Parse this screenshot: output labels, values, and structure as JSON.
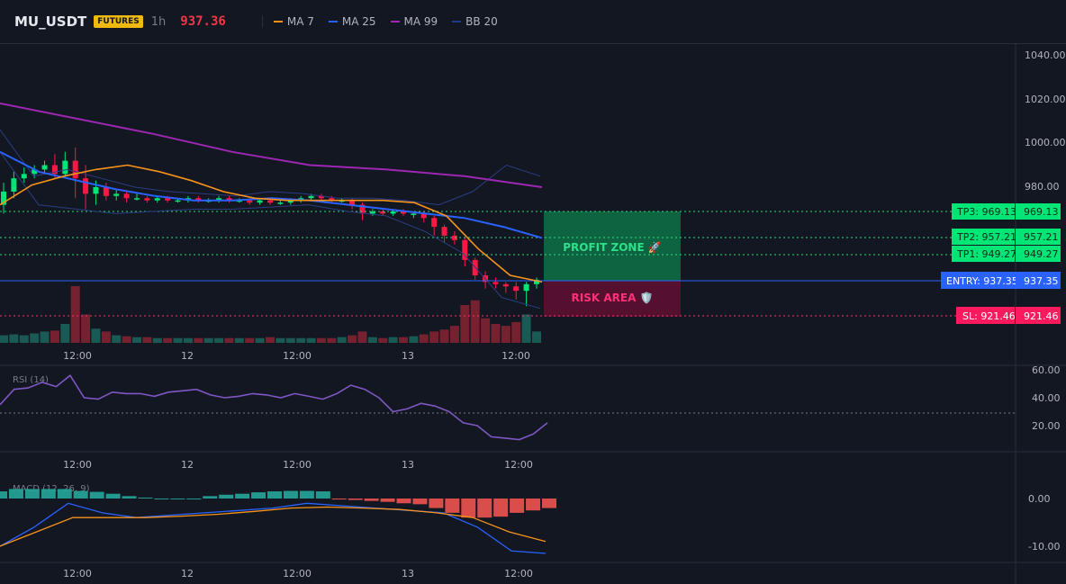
{
  "header": {
    "symbol": "MU_USDT",
    "badge": "FUTURES",
    "timeframe": "1h",
    "price": "937.36",
    "legend": [
      {
        "label": "MA 7",
        "color": "#f7931a"
      },
      {
        "label": "MA 25",
        "color": "#2962ff"
      },
      {
        "label": "MA 99",
        "color": "#9c27b0"
      },
      {
        "label": "BB 20",
        "color": "#1e3a8a"
      }
    ]
  },
  "colors": {
    "up": "#00e676",
    "down": "#ff1744",
    "background": "#131722",
    "profit_zone": "#0f7a4e",
    "risk_area": "#6b1232",
    "entry": "#2962ff"
  },
  "price_axis": {
    "ticks": [
      "1040.00",
      "1020.00",
      "1000.00",
      "980.00"
    ]
  },
  "time_axis": {
    "ticks": [
      "12:00",
      "12",
      "12:00",
      "13",
      "12:00"
    ]
  },
  "levels": {
    "tp3": {
      "label": "TP3: 969.13",
      "value": "969.13",
      "price": 969.13
    },
    "tp2": {
      "label": "TP2: 957.21",
      "value": "957.21",
      "price": 957.21
    },
    "tp1": {
      "label": "TP1: 949.27",
      "value": "949.27",
      "price": 949.27
    },
    "entry": {
      "label": "ENTRY: 937.35",
      "value": "937.35",
      "price": 937.35
    },
    "sl": {
      "label": "SL: 921.46",
      "value": "921.46",
      "price": 921.46
    }
  },
  "zones": {
    "profit": "PROFIT ZONE 🚀",
    "risk": "RISK AREA 🛡️"
  },
  "rsi": {
    "label": "RSI (14)",
    "ticks": [
      "60.00",
      "40.00",
      "20.00"
    ],
    "overbought_line": 30
  },
  "macd": {
    "label": "MACD (12, 26, 9)",
    "ticks": [
      "0.00",
      "-10.00"
    ]
  },
  "chart_data": {
    "type": "candlestick",
    "ma7": [
      972,
      981,
      985,
      988,
      990,
      987,
      983,
      978,
      975,
      974,
      974,
      974,
      974,
      973,
      967,
      952,
      940,
      937
    ],
    "ma25": [
      996,
      987,
      983,
      979,
      976,
      974,
      974,
      975,
      974,
      972,
      970,
      968,
      966,
      962,
      957
    ],
    "ma99": [
      1018,
      1011,
      1004,
      996,
      990,
      988,
      985,
      980
    ],
    "rsi": [
      35,
      46,
      47,
      51,
      48,
      56,
      40,
      39,
      44,
      43,
      43,
      41,
      44,
      45,
      46,
      42,
      40,
      41,
      43,
      42,
      40,
      43,
      41,
      39,
      43,
      49,
      46,
      40,
      30,
      32,
      36,
      34,
      30,
      22,
      20,
      12,
      11,
      10,
      14,
      22
    ],
    "macd_hist": [
      1.5,
      2,
      2,
      2,
      2,
      1.6,
      1.4,
      1,
      0.5,
      0.2,
      0,
      0,
      0,
      0.5,
      0.8,
      1,
      1.3,
      1.5,
      1.6,
      1.6,
      1.5,
      -0.2,
      -0.3,
      -0.5,
      -0.7,
      -1,
      -1.2,
      -2,
      -3,
      -4,
      -4,
      -3.8,
      -3,
      -2.5,
      -2
    ],
    "macd_line": [
      -10,
      -6,
      -1,
      -3,
      -4,
      -3.5,
      -3,
      -2.5,
      -2,
      -1,
      -1.5,
      -2,
      -2.5,
      -3,
      -6,
      -11,
      -11.5
    ],
    "signal_line": [
      -10,
      -7,
      -4,
      -4,
      -4,
      -3.7,
      -3.3,
      -2.7,
      -2,
      -1.8,
      -2,
      -2.3,
      -3,
      -4,
      -7,
      -9
    ]
  }
}
